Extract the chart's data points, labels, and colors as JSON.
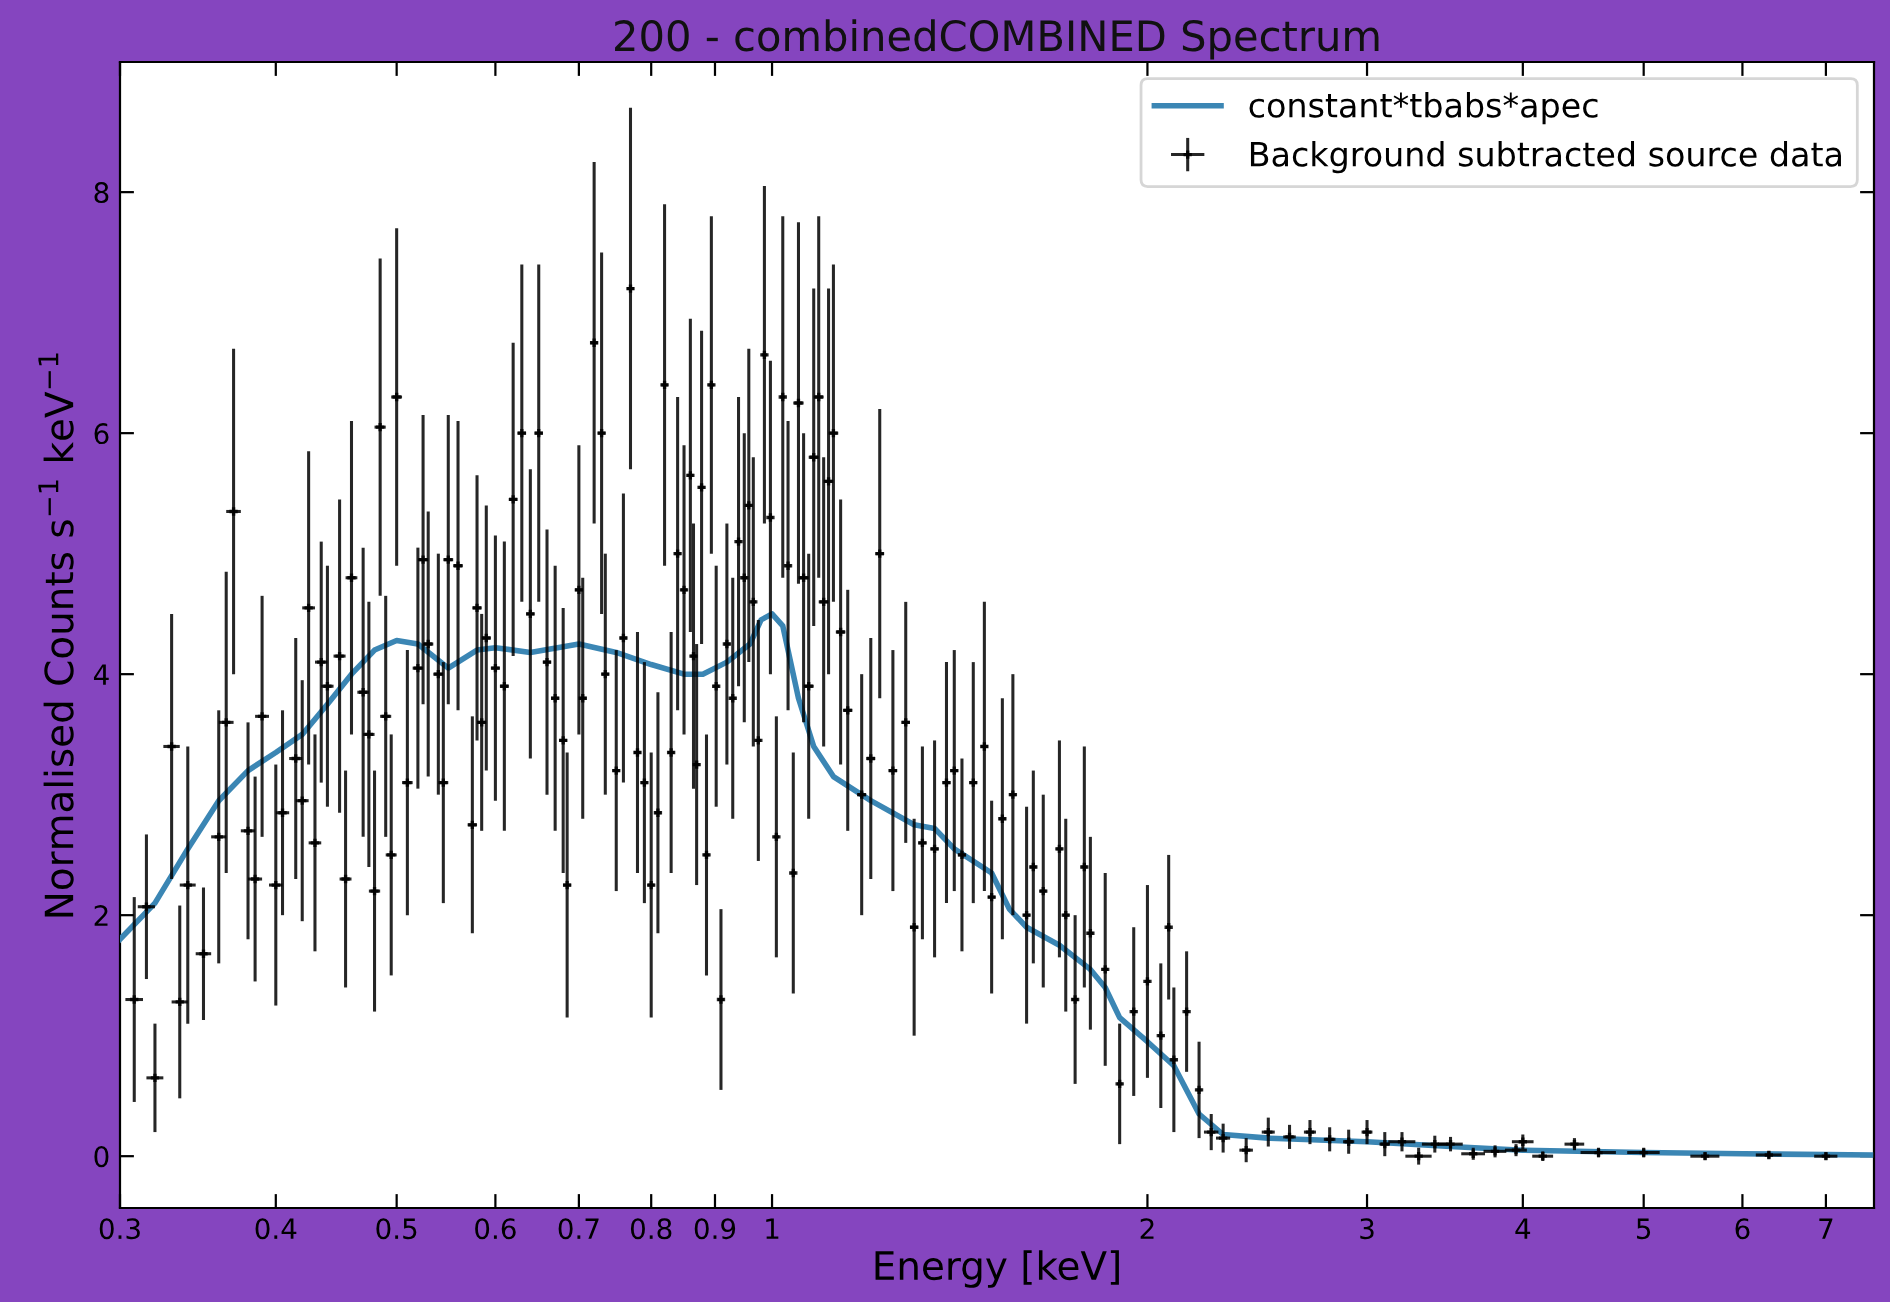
{
  "chart_data": {
    "type": "scatter",
    "title": "200 - combinedCOMBINED Spectrum",
    "xlabel": "Energy [keV]",
    "ylabel": "Normalised Counts s$^{−1}$ keV$^{−1}$",
    "log": "x",
    "xlim": [
      0.3,
      7.65
    ],
    "ylim": [
      -0.43,
      9.08
    ],
    "xticks": [
      0.3,
      0.4,
      0.5,
      0.6,
      0.7,
      0.8,
      0.9,
      1,
      2,
      3,
      4,
      5,
      6,
      7
    ],
    "yticks": [
      0,
      2,
      4,
      6,
      8
    ],
    "grid": false,
    "legend": "top right",
    "series": [
      {
        "name": "constant*tbabs*apec",
        "type": "line",
        "line_style": "solid",
        "color": "#3b86b4",
        "x": [
          0.3,
          0.32,
          0.34,
          0.36,
          0.38,
          0.4,
          0.42,
          0.44,
          0.46,
          0.48,
          0.5,
          0.52,
          0.55,
          0.58,
          0.6,
          0.64,
          0.7,
          0.75,
          0.8,
          0.85,
          0.88,
          0.92,
          0.96,
          0.98,
          1.0,
          1.02,
          1.05,
          1.08,
          1.12,
          1.2,
          1.3,
          1.35,
          1.4,
          1.5,
          1.55,
          1.6,
          1.7,
          1.8,
          1.85,
          1.9,
          2.0,
          2.1,
          2.2,
          2.3,
          2.5,
          3.0,
          3.5,
          4.0,
          5.0,
          6.0,
          7.6
        ],
        "values": [
          1.8,
          2.1,
          2.55,
          2.95,
          3.2,
          3.35,
          3.5,
          3.75,
          4.0,
          4.2,
          4.28,
          4.25,
          4.05,
          4.2,
          4.22,
          4.18,
          4.25,
          4.18,
          4.08,
          4.0,
          4.0,
          4.1,
          4.25,
          4.45,
          4.5,
          4.4,
          3.8,
          3.4,
          3.15,
          2.95,
          2.75,
          2.72,
          2.55,
          2.35,
          2.05,
          1.9,
          1.75,
          1.55,
          1.4,
          1.15,
          0.95,
          0.75,
          0.35,
          0.18,
          0.15,
          0.12,
          0.08,
          0.05,
          0.03,
          0.02,
          0.01
        ]
      },
      {
        "name": "Background subtracted source data",
        "color": "#000000",
        "marker": "cross",
        "x": [
          0.308,
          0.315,
          0.32,
          0.33,
          0.335,
          0.34,
          0.35,
          0.36,
          0.365,
          0.37,
          0.38,
          0.385,
          0.39,
          0.4,
          0.405,
          0.415,
          0.42,
          0.425,
          0.43,
          0.435,
          0.44,
          0.45,
          0.455,
          0.46,
          0.47,
          0.475,
          0.48,
          0.485,
          0.49,
          0.495,
          0.5,
          0.51,
          0.52,
          0.525,
          0.53,
          0.54,
          0.545,
          0.55,
          0.56,
          0.575,
          0.58,
          0.585,
          0.59,
          0.6,
          0.61,
          0.62,
          0.63,
          0.64,
          0.65,
          0.66,
          0.67,
          0.68,
          0.685,
          0.7,
          0.705,
          0.72,
          0.73,
          0.735,
          0.75,
          0.76,
          0.77,
          0.78,
          0.79,
          0.8,
          0.81,
          0.82,
          0.83,
          0.84,
          0.85,
          0.86,
          0.865,
          0.87,
          0.878,
          0.886,
          0.894,
          0.902,
          0.91,
          0.92,
          0.93,
          0.94,
          0.95,
          0.958,
          0.966,
          0.975,
          0.986,
          0.997,
          1.008,
          1.02,
          1.03,
          1.04,
          1.05,
          1.06,
          1.07,
          1.08,
          1.09,
          1.1,
          1.11,
          1.12,
          1.135,
          1.15,
          1.18,
          1.2,
          1.22,
          1.25,
          1.28,
          1.3,
          1.32,
          1.35,
          1.38,
          1.4,
          1.42,
          1.45,
          1.48,
          1.5,
          1.53,
          1.56,
          1.6,
          1.62,
          1.65,
          1.7,
          1.72,
          1.75,
          1.78,
          1.8,
          1.85,
          1.9,
          1.95,
          2.0,
          2.05,
          2.08,
          2.1,
          2.15,
          2.2,
          2.25,
          2.3,
          2.4,
          2.5,
          2.6,
          2.7,
          2.8,
          2.9,
          3.0,
          3.1,
          3.2,
          3.3,
          3.4,
          3.5,
          3.65,
          3.8,
          3.95,
          4.0,
          4.15,
          4.4,
          4.6,
          5.0,
          5.6,
          6.3,
          7.0
        ],
        "values": [
          1.3,
          2.07,
          0.65,
          3.4,
          1.28,
          2.25,
          1.68,
          2.65,
          3.6,
          5.35,
          2.7,
          2.3,
          3.65,
          2.25,
          2.85,
          3.3,
          2.95,
          4.55,
          2.6,
          4.1,
          3.9,
          4.15,
          2.3,
          4.8,
          3.85,
          3.5,
          2.2,
          6.05,
          3.65,
          2.5,
          6.3,
          3.1,
          4.05,
          4.95,
          4.25,
          4.0,
          3.1,
          4.95,
          4.9,
          2.75,
          4.55,
          3.6,
          4.3,
          4.05,
          3.9,
          5.45,
          6.0,
          4.5,
          6.0,
          4.1,
          3.8,
          3.45,
          2.25,
          4.7,
          3.8,
          6.75,
          6.0,
          4.0,
          3.2,
          4.3,
          7.2,
          3.35,
          3.1,
          2.25,
          2.85,
          6.4,
          3.35,
          5.0,
          4.7,
          5.65,
          4.15,
          3.25,
          5.55,
          2.5,
          6.4,
          3.9,
          1.3,
          4.25,
          3.8,
          5.1,
          4.8,
          5.4,
          4.6,
          3.45,
          6.65,
          5.3,
          2.65,
          6.3,
          4.9,
          2.35,
          6.25,
          4.8,
          3.9,
          5.8,
          6.3,
          4.6,
          5.6,
          6.0,
          4.35,
          3.7,
          3.0,
          3.3,
          5.0,
          3.2,
          3.6,
          1.9,
          2.6,
          2.55,
          3.1,
          3.2,
          2.5,
          3.1,
          3.4,
          2.15,
          2.8,
          3.0,
          2.0,
          2.4,
          2.2,
          2.55,
          2.0,
          1.3,
          2.4,
          1.85,
          1.55,
          0.6,
          1.2,
          1.45,
          1.0,
          1.9,
          0.8,
          1.2,
          0.55,
          0.2,
          0.15,
          0.05,
          0.2,
          0.16,
          0.2,
          0.14,
          0.12,
          0.2,
          0.1,
          0.12,
          0.0,
          0.1,
          0.1,
          0.02,
          0.04,
          0.05,
          0.12,
          0.0,
          0.1,
          0.03,
          0.03,
          0.0,
          0.01,
          0.0
        ],
        "errors": [
          0.85,
          0.6,
          0.45,
          1.1,
          0.8,
          1.15,
          0.55,
          1.05,
          1.25,
          1.35,
          0.9,
          0.85,
          1.0,
          1.0,
          0.85,
          1.0,
          1.0,
          1.3,
          0.9,
          1.0,
          1.0,
          1.3,
          0.9,
          1.3,
          1.2,
          1.1,
          1.0,
          1.4,
          1.0,
          1.0,
          1.4,
          1.1,
          1.0,
          1.2,
          1.1,
          1.0,
          1.0,
          1.2,
          1.2,
          0.9,
          1.1,
          0.9,
          1.1,
          1.1,
          1.2,
          1.3,
          1.4,
          1.2,
          1.4,
          1.1,
          1.1,
          1.1,
          1.1,
          1.2,
          1.0,
          1.5,
          1.5,
          1.0,
          1.0,
          1.2,
          1.5,
          1.0,
          1.0,
          1.1,
          1.0,
          1.5,
          1.0,
          1.3,
          1.2,
          1.3,
          1.1,
          1.0,
          1.3,
          1.0,
          1.4,
          1.0,
          0.75,
          1.0,
          1.0,
          1.2,
          1.2,
          1.3,
          1.2,
          1.0,
          1.4,
          1.3,
          1.0,
          1.5,
          1.2,
          1.0,
          1.5,
          1.2,
          1.1,
          1.4,
          1.5,
          1.2,
          1.6,
          1.4,
          1.1,
          1.0,
          1.0,
          1.0,
          1.2,
          1.0,
          1.0,
          0.9,
          0.8,
          0.9,
          1.0,
          1.0,
          0.8,
          1.0,
          1.2,
          0.8,
          1.0,
          1.0,
          0.9,
          0.8,
          0.8,
          0.9,
          0.8,
          0.7,
          1.0,
          0.8,
          0.8,
          0.5,
          0.7,
          0.8,
          0.6,
          0.6,
          0.6,
          0.5,
          0.4,
          0.15,
          0.12,
          0.1,
          0.12,
          0.1,
          0.1,
          0.1,
          0.1,
          0.1,
          0.1,
          0.08,
          0.07,
          0.07,
          0.06,
          0.05,
          0.05,
          0.05,
          0.06,
          0.04,
          0.05,
          0.04,
          0.04,
          0.03,
          0.03,
          0.03
        ],
        "xerrors": [
          0.005,
          0.005,
          0.005,
          0.005,
          0.005,
          0.005,
          0.005,
          0.005,
          0.005,
          0.005,
          0.005,
          0.005,
          0.005,
          0.005,
          0.005,
          0.005,
          0.005,
          0.005,
          0.005,
          0.005,
          0.005,
          0.005,
          0.005,
          0.005,
          0.005,
          0.005,
          0.005,
          0.005,
          0.005,
          0.005,
          0.005,
          0.005,
          0.005,
          0.005,
          0.005,
          0.005,
          0.005,
          0.005,
          0.005,
          0.005,
          0.005,
          0.005,
          0.005,
          0.005,
          0.005,
          0.005,
          0.005,
          0.005,
          0.005,
          0.005,
          0.005,
          0.005,
          0.005,
          0.005,
          0.005,
          0.005,
          0.005,
          0.005,
          0.005,
          0.005,
          0.005,
          0.005,
          0.005,
          0.005,
          0.005,
          0.005,
          0.005,
          0.005,
          0.005,
          0.005,
          0.005,
          0.005,
          0.005,
          0.005,
          0.005,
          0.005,
          0.005,
          0.005,
          0.005,
          0.005,
          0.005,
          0.005,
          0.005,
          0.005,
          0.005,
          0.005,
          0.005,
          0.005,
          0.005,
          0.005,
          0.01,
          0.01,
          0.01,
          0.01,
          0.01,
          0.01,
          0.01,
          0.01,
          0.01,
          0.01,
          0.01,
          0.01,
          0.01,
          0.01,
          0.01,
          0.01,
          0.01,
          0.01,
          0.01,
          0.01,
          0.01,
          0.01,
          0.01,
          0.01,
          0.01,
          0.01,
          0.01,
          0.01,
          0.01,
          0.01,
          0.01,
          0.01,
          0.01,
          0.01,
          0.01,
          0.01,
          0.01,
          0.01,
          0.01,
          0.01,
          0.01,
          0.01,
          0.01,
          0.03,
          0.03,
          0.03,
          0.03,
          0.03,
          0.03,
          0.03,
          0.03,
          0.03,
          0.03,
          0.08,
          0.08,
          0.08,
          0.08,
          0.08,
          0.08,
          0.08,
          0.08,
          0.08,
          0.08,
          0.15,
          0.15,
          0.15,
          0.15,
          0.15
        ]
      }
    ]
  }
}
